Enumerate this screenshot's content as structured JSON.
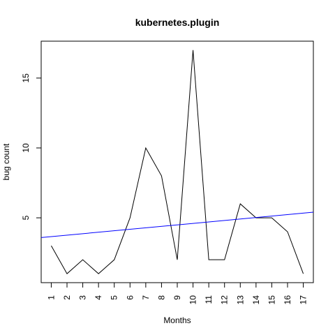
{
  "chart_data": {
    "type": "line",
    "title": "kubernetes.plugin",
    "xlabel": "Months",
    "ylabel": "bug count",
    "x": [
      1,
      2,
      3,
      4,
      5,
      6,
      7,
      8,
      9,
      10,
      11,
      12,
      13,
      14,
      15,
      16,
      17
    ],
    "x_tick_labels": [
      "1",
      "2",
      "3",
      "4",
      "5",
      "6",
      "7",
      "8",
      "9",
      "10",
      "11",
      "12",
      "13",
      "14",
      "15",
      "16",
      "17"
    ],
    "y_ticks": [
      5,
      10,
      15
    ],
    "y_tick_labels": [
      "5",
      "10",
      "15"
    ],
    "xlim": [
      0.36,
      17.64
    ],
    "ylim": [
      0.36,
      17.64
    ],
    "grid": false,
    "series": [
      {
        "values": [
          3,
          1,
          2,
          1,
          2,
          5,
          10,
          8,
          2,
          17,
          2,
          2,
          6,
          5,
          5,
          4,
          1
        ],
        "color": "#000000"
      }
    ],
    "trend_line": {
      "color": "#0000ff",
      "intercept": 3.55,
      "slope": 0.105
    }
  }
}
